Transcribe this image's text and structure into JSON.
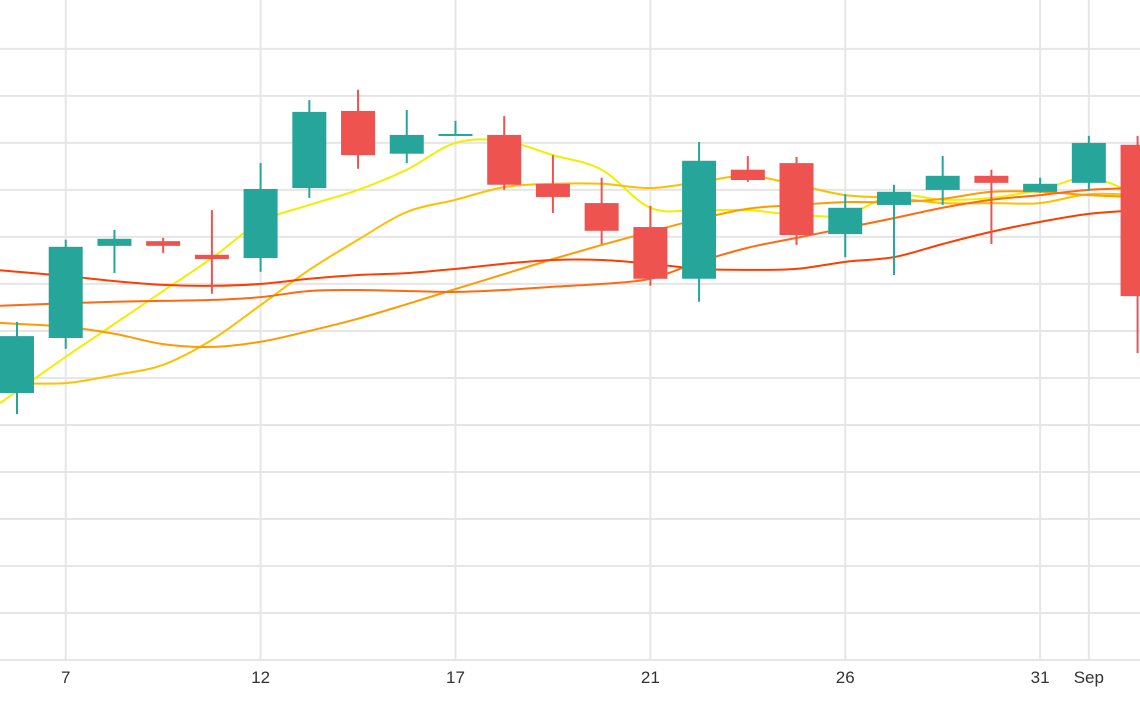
{
  "chart_data": {
    "type": "candlestick",
    "title": "",
    "xlabel": "",
    "ylabel": "",
    "ylim": [
      100,
      240.4
    ],
    "y_gridlines": [
      110,
      120,
      130,
      140,
      150,
      160,
      170,
      180,
      190,
      200,
      210,
      220,
      230
    ],
    "grid": true,
    "x_tick_labels": [
      {
        "index": 1,
        "label": "7"
      },
      {
        "index": 5,
        "label": "12"
      },
      {
        "index": 9,
        "label": "17"
      },
      {
        "index": 13,
        "label": "21"
      },
      {
        "index": 17,
        "label": "26"
      },
      {
        "index": 21,
        "label": "31"
      },
      {
        "index": 22,
        "label": "Sep"
      }
    ],
    "colors": {
      "up": "#26a69a",
      "down": "#ef5350",
      "grid": "#e6e6e6"
    },
    "candles": [
      {
        "o": 156.8,
        "c": 168.9,
        "h": 171.9,
        "l": 152.3
      },
      {
        "o": 168.5,
        "c": 187.9,
        "h": 189.4,
        "l": 166.2
      },
      {
        "o": 188.1,
        "c": 189.6,
        "h": 191.5,
        "l": 182.3
      },
      {
        "o": 189.1,
        "c": 188.1,
        "h": 189.8,
        "l": 186.6
      },
      {
        "o": 186.2,
        "c": 185.3,
        "h": 195.7,
        "l": 177.9
      },
      {
        "o": 185.5,
        "c": 200.2,
        "h": 205.7,
        "l": 182.6
      },
      {
        "o": 200.4,
        "c": 216.6,
        "h": 219.1,
        "l": 198.3
      },
      {
        "o": 216.8,
        "c": 207.4,
        "h": 221.3,
        "l": 204.5
      },
      {
        "o": 207.7,
        "c": 211.7,
        "h": 217.0,
        "l": 205.7
      },
      {
        "o": 211.7,
        "c": 211.9,
        "h": 214.7,
        "l": 211.7
      },
      {
        "o": 211.7,
        "c": 201.1,
        "h": 215.7,
        "l": 200.0
      },
      {
        "o": 201.3,
        "c": 198.5,
        "h": 207.4,
        "l": 195.1
      },
      {
        "o": 197.2,
        "c": 191.3,
        "h": 202.6,
        "l": 188.5
      },
      {
        "o": 192.1,
        "c": 181.1,
        "h": 196.6,
        "l": 179.6
      },
      {
        "o": 181.1,
        "c": 206.2,
        "h": 210.2,
        "l": 176.2
      },
      {
        "o": 204.3,
        "c": 202.1,
        "h": 207.2,
        "l": 201.7
      },
      {
        "o": 205.7,
        "c": 190.4,
        "h": 207.0,
        "l": 188.3
      },
      {
        "o": 190.6,
        "c": 196.2,
        "h": 199.1,
        "l": 185.7
      },
      {
        "o": 196.8,
        "c": 199.6,
        "h": 201.1,
        "l": 181.9
      },
      {
        "o": 200.0,
        "c": 203.0,
        "h": 207.2,
        "l": 196.8
      },
      {
        "o": 203.0,
        "c": 201.5,
        "h": 204.3,
        "l": 188.5
      },
      {
        "o": 199.6,
        "c": 201.3,
        "h": 202.6,
        "l": 199.4
      },
      {
        "o": 201.5,
        "c": 210.0,
        "h": 211.5,
        "l": 199.8
      },
      {
        "o": 209.6,
        "c": 177.4,
        "h": 211.5,
        "l": 165.3
      }
    ],
    "series": [
      {
        "name": "ma-yellow",
        "color": "#f2ee00",
        "values": [
          157.2,
          164.5,
          171.5,
          178.5,
          185.5,
          193.2,
          196.8,
          200.0,
          204.3,
          210.0,
          210.4,
          207.4,
          204.3,
          196.2,
          195.7,
          195.7,
          194.7,
          194.7,
          198.9,
          197.9,
          198.3,
          200.0,
          202.6,
          198.9
        ]
      },
      {
        "name": "ma-gold",
        "color": "#ffbf00",
        "values": [
          158.9,
          158.9,
          160.6,
          162.8,
          168.1,
          175.5,
          183.0,
          189.4,
          195.3,
          197.9,
          200.6,
          201.3,
          201.3,
          200.4,
          201.7,
          203.0,
          201.1,
          198.9,
          198.3,
          197.2,
          197.2,
          197.2,
          199.1,
          198.9
        ]
      },
      {
        "name": "ma-orange",
        "color": "#ff9a00",
        "values": [
          171.5,
          170.9,
          169.4,
          167.2,
          166.6,
          167.7,
          170.0,
          172.6,
          175.7,
          178.9,
          182.1,
          185.3,
          188.3,
          191.1,
          193.8,
          196.0,
          196.8,
          197.4,
          197.4,
          198.1,
          199.6,
          199.6,
          198.9,
          198.5
        ]
      },
      {
        "name": "ma-dark-orange",
        "color": "#ff6a10",
        "values": [
          175.5,
          175.9,
          176.2,
          176.4,
          176.6,
          177.2,
          178.5,
          178.7,
          178.5,
          178.3,
          178.7,
          179.4,
          180.0,
          181.1,
          184.7,
          187.7,
          189.8,
          191.9,
          194.0,
          196.2,
          197.9,
          198.9,
          200.0,
          200.4
        ]
      },
      {
        "name": "ma-red",
        "color": "#ff3d00",
        "values": [
          182.6,
          181.7,
          180.6,
          179.8,
          179.6,
          180.0,
          181.1,
          181.9,
          182.3,
          183.2,
          184.3,
          185.1,
          185.1,
          184.3,
          183.2,
          183.0,
          183.2,
          184.7,
          185.7,
          188.5,
          191.1,
          193.2,
          194.9,
          195.7
        ]
      }
    ]
  }
}
